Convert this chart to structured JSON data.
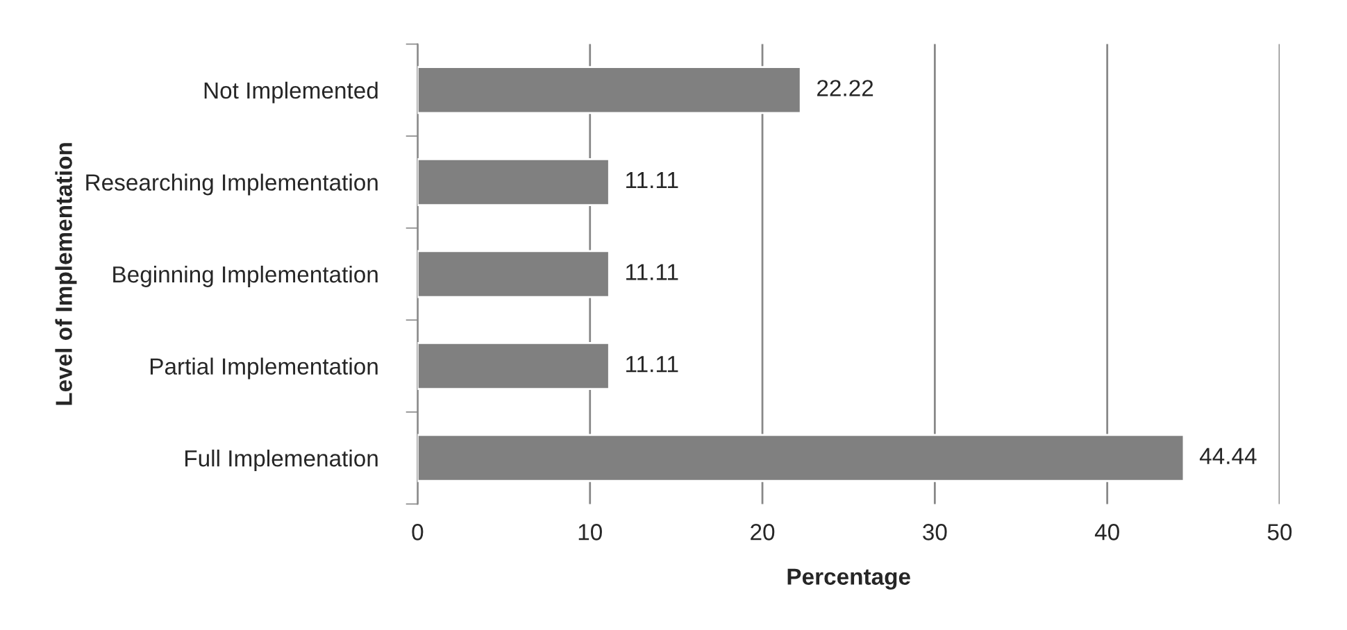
{
  "chart_data": {
    "type": "bar",
    "orientation": "horizontal",
    "xlabel": "Percentage",
    "ylabel": "Level of Implementation",
    "categories": [
      "Not Implemented",
      "Researching Implementation",
      "Beginning Implementation",
      "Partial Implementation",
      "Full Implemenation"
    ],
    "values": [
      22.22,
      11.11,
      11.11,
      11.11,
      44.44
    ],
    "color": "#808080",
    "xlim": [
      0,
      50
    ],
    "xticks": [
      0,
      10,
      20,
      30,
      40,
      50
    ],
    "grid": "x",
    "data_labels": true
  }
}
